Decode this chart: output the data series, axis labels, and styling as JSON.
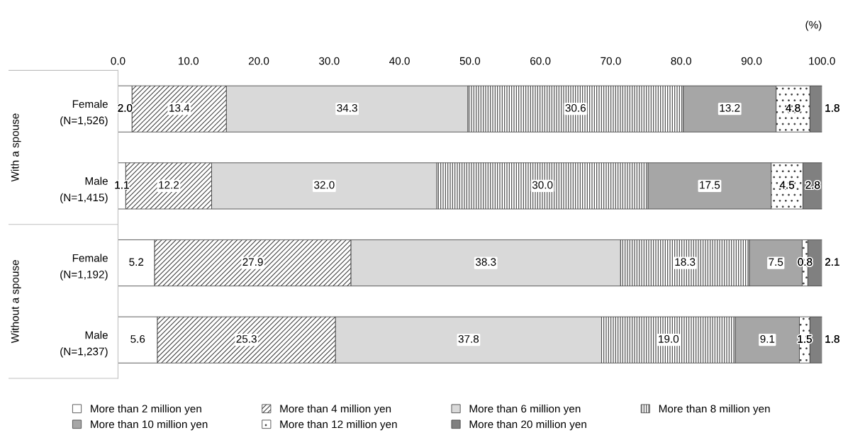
{
  "chart_data": {
    "type": "bar",
    "orientation": "horizontal",
    "stacked": true,
    "categories": [
      "Female\n(N=1,526)",
      "Male\n(N=1,415)",
      "Female\n(N=1,192)",
      "Male\n(N=1,237)"
    ],
    "series": [
      {
        "name": "More than 2 million yen",
        "color": "#ffffff",
        "values": [
          2.0,
          1.1,
          5.2,
          5.6
        ],
        "value_labels": [
          "2.0",
          "1.1",
          "5.2",
          "5.6"
        ]
      },
      {
        "name": "More than 4 million yen",
        "color": "#404040",
        "values": [
          13.4,
          12.2,
          27.9,
          25.3
        ],
        "value_labels": [
          "13.4",
          "12.2",
          "27.9",
          "25.3"
        ]
      },
      {
        "name": "More than 6 million yen",
        "color": "#d9d9d9",
        "values": [
          34.3,
          32.0,
          38.3,
          37.8
        ],
        "value_labels": [
          "34.3",
          "32.0",
          "38.3",
          "37.8"
        ]
      },
      {
        "name": "More than 8 million yen",
        "color": "#404040",
        "values": [
          30.6,
          30.0,
          18.3,
          19.0
        ],
        "value_labels": [
          "30.6",
          "30.0",
          "18.3",
          "19.0"
        ]
      },
      {
        "name": "More than 10 million yen",
        "color": "#a6a6a6",
        "values": [
          13.2,
          17.5,
          7.5,
          9.1
        ],
        "value_labels": [
          "13.2",
          "17.5",
          "7.5",
          "9.1"
        ]
      },
      {
        "name": "More than 12 million yen",
        "color": "#404040",
        "values": [
          4.8,
          4.5,
          0.8,
          1.5
        ],
        "value_labels": [
          "4.8",
          "4.5",
          "0.8",
          "1.5"
        ]
      },
      {
        "name": "More than 20 million yen",
        "color": "#808080",
        "values": [
          1.8,
          2.8,
          2.1,
          1.8
        ],
        "value_labels": [
          "1.8",
          "2.8",
          "2.1",
          "1.8"
        ]
      }
    ],
    "xlim": [
      0,
      100
    ],
    "xticks": [
      {
        "value": 0,
        "label": "0.0"
      },
      {
        "value": 10,
        "label": "10.0"
      },
      {
        "value": 20,
        "label": "20.0"
      },
      {
        "value": 30,
        "label": "30.0"
      },
      {
        "value": 40,
        "label": "40.0"
      },
      {
        "value": 50,
        "label": "50.0"
      },
      {
        "value": 60,
        "label": "60.0"
      },
      {
        "value": 70,
        "label": "70.0"
      },
      {
        "value": 80,
        "label": "80.0"
      },
      {
        "value": 90,
        "label": "90.0"
      },
      {
        "value": 100,
        "label": "100.0"
      }
    ],
    "xlabel": "(%)",
    "annotations": [
      "With a spouse",
      "Without a spouse"
    ],
    "legend": "bottom",
    "grid": false
  }
}
